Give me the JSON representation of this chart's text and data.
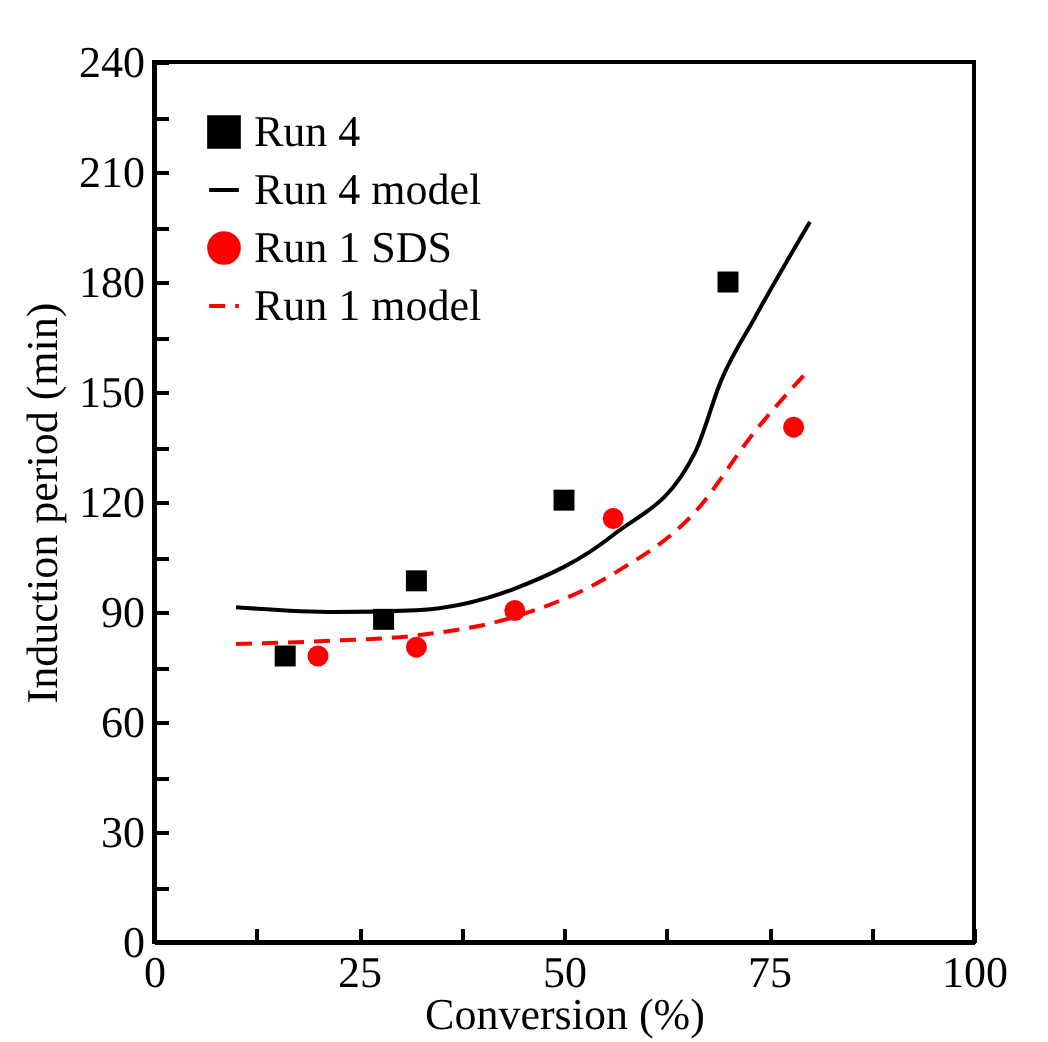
{
  "chart_data": {
    "type": "scatter",
    "xlabel": "Conversion (%)",
    "ylabel": "Induction period (min)",
    "xlim": [
      0,
      100
    ],
    "ylim": [
      0,
      240
    ],
    "xticks": [
      0,
      {
        "value": 12.5,
        "label": null
      },
      25,
      {
        "value": 37.5,
        "label": null
      },
      50,
      {
        "value": 62.5,
        "label": null
      },
      75,
      {
        "value": 87.5,
        "label": null
      },
      100
    ],
    "yticks": [
      0,
      {
        "value": 15,
        "label": null
      },
      30,
      {
        "value": 45,
        "label": null
      },
      60,
      {
        "value": 75,
        "label": null
      },
      90,
      {
        "value": 105,
        "label": null
      },
      120,
      {
        "value": 135,
        "label": null
      },
      150,
      {
        "value": 165,
        "label": null
      },
      180,
      {
        "value": 195,
        "label": null
      },
      210,
      {
        "value": 225,
        "label": null
      },
      240
    ],
    "grid": false,
    "legend": "top left",
    "series": [
      {
        "name": "Run 4",
        "type": "scatter",
        "marker": "square",
        "color": "#000000",
        "x": [
          16,
          28,
          32,
          50,
          70
        ],
        "values": [
          78,
          88,
          98.5,
          120.5,
          180
        ]
      },
      {
        "name": "Run 4 model",
        "type": "line",
        "line_style": "solid",
        "color": "#000000",
        "x": [
          10,
          22,
          32,
          44,
          56,
          66,
          69.2,
          73.2,
          80
        ],
        "values": [
          91.3,
          90,
          90.5,
          96.4,
          111,
          133.6,
          153.3,
          170,
          196.4
        ]
      },
      {
        "name": "Run 1 SDS",
        "type": "scatter",
        "marker": "circle",
        "color": "#ff0000",
        "x": [
          20,
          32,
          44,
          56,
          78
        ],
        "values": [
          78,
          80.4,
          90.4,
          115.5,
          140.4
        ]
      },
      {
        "name": "Run 1 model",
        "type": "line",
        "line_style": "dashed",
        "color": "#ff0000",
        "x": [
          10,
          22,
          32,
          44,
          56,
          66,
          73.2,
          80
        ],
        "values": [
          81.3,
          82.2,
          83.6,
          88.7,
          100.4,
          117.3,
          139,
          156.4
        ]
      }
    ]
  }
}
